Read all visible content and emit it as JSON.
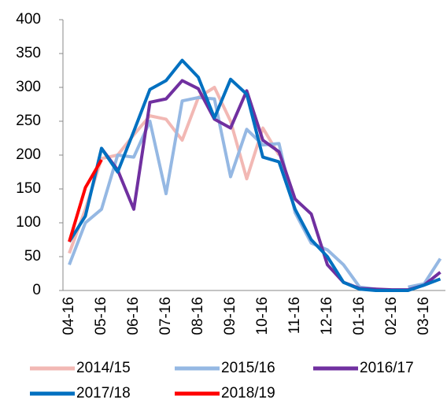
{
  "chart_data": {
    "type": "line",
    "categories": [
      "04-16",
      null,
      "05-16",
      null,
      "06-16",
      null,
      "07-16",
      null,
      "08-16",
      null,
      "09-16",
      null,
      "10-16",
      null,
      "11-16",
      null,
      "12-16",
      null,
      "01-16",
      null,
      "02-16",
      null,
      "03-16",
      null
    ],
    "ylim": [
      0,
      400
    ],
    "yticks": [
      0,
      50,
      100,
      150,
      200,
      250,
      300,
      350,
      400
    ],
    "series": [
      {
        "name": "2014/15",
        "color": "#f2b8b4",
        "values": [
          55,
          120,
          195,
          200,
          230,
          258,
          253,
          222,
          285,
          300,
          250,
          165,
          240,
          200,
          null,
          null,
          null,
          null,
          null,
          null,
          null,
          null,
          null,
          null
        ]
      },
      {
        "name": "2015/16",
        "color": "#95b8e3",
        "values": [
          38,
          100,
          120,
          200,
          197,
          250,
          143,
          280,
          285,
          283,
          168,
          238,
          215,
          217,
          115,
          70,
          60,
          38,
          5,
          2,
          null,
          5,
          10,
          47
        ]
      },
      {
        "name": "2016/17",
        "color": "#7030a0",
        "values": [
          null,
          null,
          210,
          178,
          120,
          278,
          283,
          310,
          298,
          253,
          240,
          295,
          222,
          205,
          135,
          113,
          38,
          12,
          3,
          2,
          1,
          1,
          8,
          27
        ]
      },
      {
        "name": "2017/18",
        "color": "#0070c0",
        "values": [
          72,
          110,
          210,
          175,
          235,
          297,
          310,
          340,
          315,
          255,
          312,
          290,
          197,
          190,
          120,
          75,
          50,
          12,
          2,
          0,
          0,
          0,
          8,
          17
        ]
      },
      {
        "name": "2018/19",
        "color": "#ff0000",
        "values": [
          72,
          152,
          193,
          null,
          null,
          null,
          null,
          null,
          null,
          null,
          null,
          null,
          null,
          null,
          null,
          null,
          null,
          null,
          null,
          null,
          null,
          null,
          null,
          null
        ]
      }
    ]
  }
}
